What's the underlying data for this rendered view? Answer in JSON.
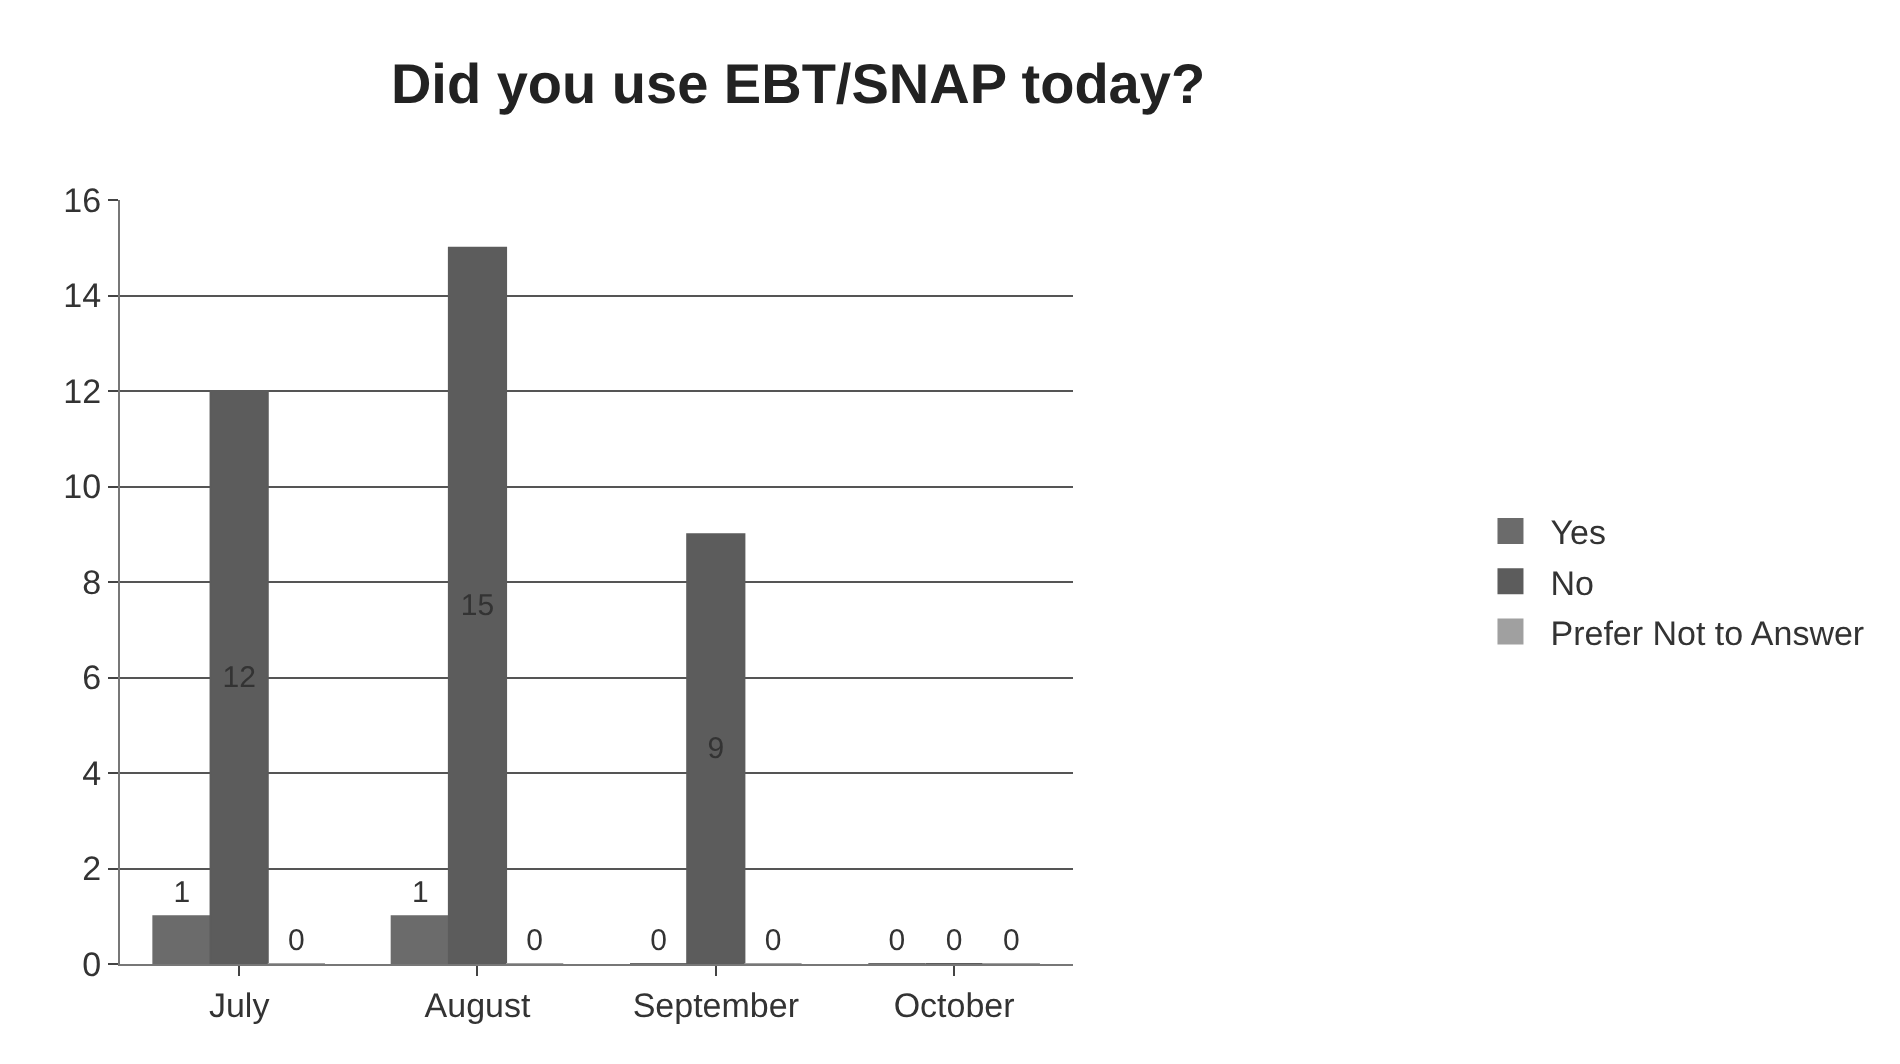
{
  "chart_data": {
    "type": "bar",
    "title": "Did you use EBT/SNAP today?",
    "categories": [
      "July",
      "August",
      "September",
      "October"
    ],
    "series": [
      {
        "name": "Yes",
        "color": "#6b6b6b",
        "values": [
          1,
          1,
          0,
          0
        ]
      },
      {
        "name": "No",
        "color": "#5c5c5c",
        "values": [
          12,
          15,
          9,
          0
        ]
      },
      {
        "name": "Prefer Not to Answer",
        "color": "#a0a0a0",
        "values": [
          0,
          0,
          0,
          0
        ]
      }
    ],
    "ylim": [
      0,
      16
    ],
    "yticks": [
      0,
      2,
      4,
      6,
      8,
      10,
      12,
      14,
      16
    ],
    "grid": "y",
    "legend": "right",
    "data_labels": true
  }
}
